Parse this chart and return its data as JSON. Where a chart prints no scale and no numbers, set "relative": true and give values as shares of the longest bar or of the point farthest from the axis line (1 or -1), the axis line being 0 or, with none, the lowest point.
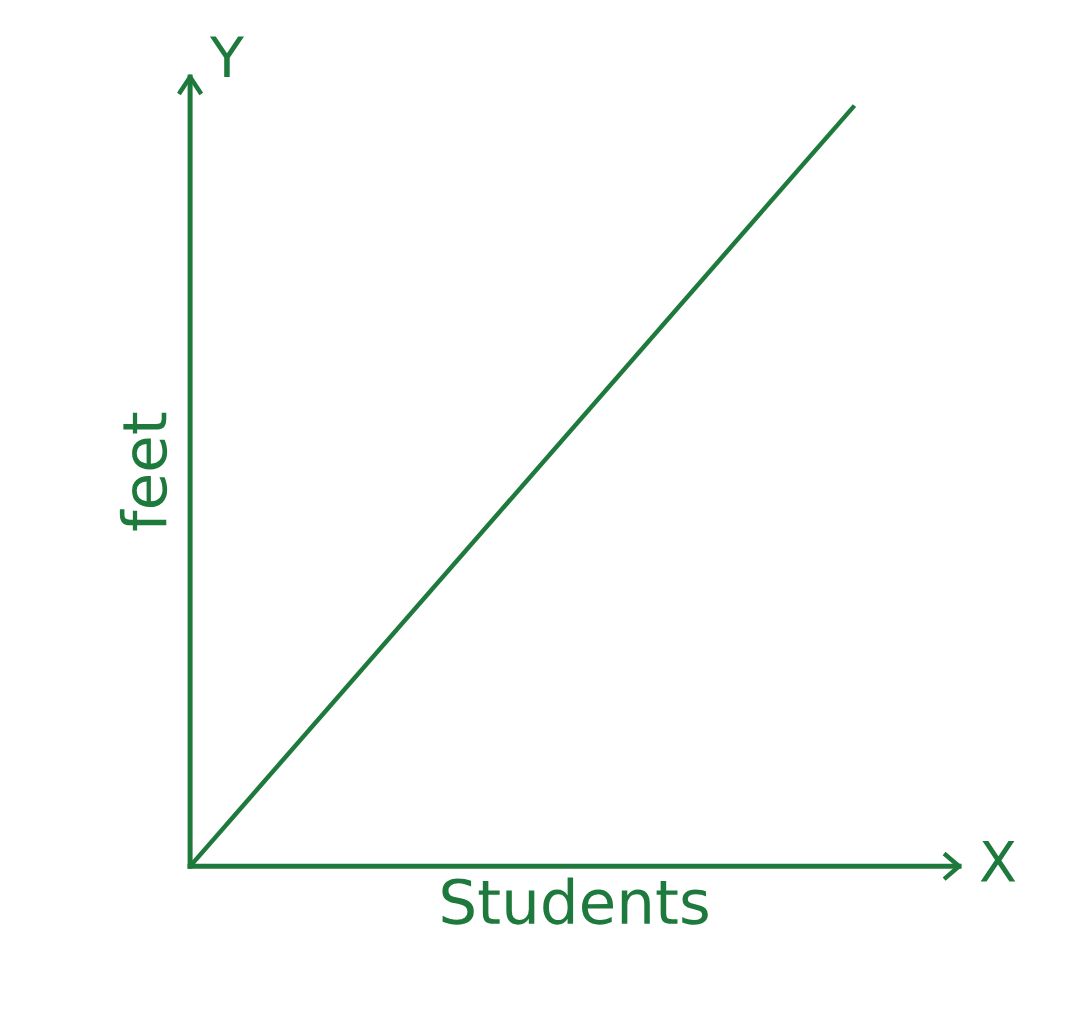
{
  "chart_data": {
    "type": "line",
    "xlabel": "Students",
    "ylabel": "feet",
    "categories": [
      null,
      null
    ],
    "relative": true,
    "series": [
      {
        "color": "#1e7a3c",
        "values": [
          0,
          1
        ]
      }
    ],
    "annotations": [
      "X",
      "Y"
    ],
    "legend": false,
    "marker": "none",
    "line_style": "solid"
  }
}
